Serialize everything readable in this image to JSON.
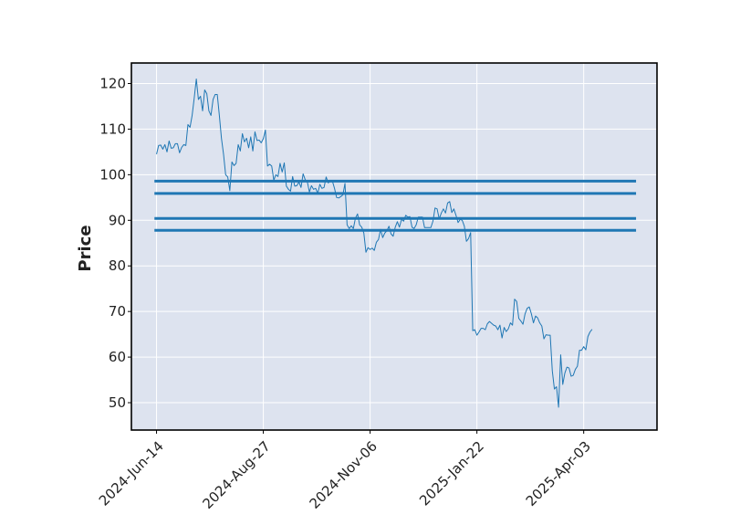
{
  "chart_data": {
    "type": "line",
    "title": "",
    "xlabel": "",
    "ylabel": "Price",
    "ylim": [
      44,
      124.5
    ],
    "x_ticks": [
      "2024-Jun-14",
      "2024-Aug-27",
      "2024-Nov-06",
      "2025-Jan-22",
      "2025-Apr-03"
    ],
    "x_tick_positions": [
      0,
      51,
      102,
      153,
      204
    ],
    "y_ticks": [
      50,
      60,
      70,
      80,
      90,
      100,
      110,
      120
    ],
    "grid": true,
    "background_color": "#dde3ef",
    "grid_color": "#ffffff",
    "line_color": "#1f77b4",
    "hline_color": "#1f77b4",
    "hlines": [
      {
        "y": 98.6,
        "x_start": -1,
        "x_end": 229
      },
      {
        "y": 95.9,
        "x_start": -1,
        "x_end": 229
      },
      {
        "y": 90.4,
        "x_start": -1,
        "x_end": 229
      },
      {
        "y": 87.8,
        "x_start": -1,
        "x_end": 229
      }
    ],
    "series": [
      {
        "values": [
          104.5,
          106.4,
          106.5,
          105.6,
          106.6,
          105.0,
          107.4,
          105.8,
          105.9,
          106.8,
          106.8,
          104.8,
          106.0,
          106.6,
          106.4,
          111.0,
          110.4,
          113.0,
          116.8,
          121.0,
          116.5,
          117.2,
          114.0,
          118.6,
          117.8,
          114.0,
          113.0,
          116.5,
          117.6,
          117.6,
          113.0,
          108.0,
          104.5,
          100.0,
          99.5,
          96.5,
          102.8,
          102.0,
          102.5,
          106.6,
          105.2,
          109.0,
          107.2,
          108.0,
          105.9,
          108.3,
          105.2,
          109.4,
          107.5,
          107.6,
          107.0,
          107.9,
          109.8,
          101.9,
          102.3,
          101.9,
          98.8,
          100.0,
          99.6,
          102.5,
          100.6,
          102.6,
          97.5,
          96.8,
          96.4,
          99.6,
          97.5,
          97.6,
          98.4,
          97.2,
          100.2,
          98.9,
          98.5,
          96.2,
          97.6,
          96.8,
          97.0,
          95.9,
          97.9,
          97.0,
          97.2,
          99.5,
          98.2,
          98.6,
          98.6,
          97.0,
          95.0,
          94.9,
          95.2,
          95.6,
          98.1,
          89.0,
          88.2,
          88.8,
          88.2,
          90.5,
          91.4,
          89.0,
          88.5,
          87.2,
          83.0,
          84.0,
          83.6,
          83.9,
          83.4,
          85.2,
          85.8,
          88.0,
          86.2,
          87.2,
          87.7,
          88.7,
          87.0,
          86.5,
          88.5,
          89.7,
          88.5,
          90.2,
          89.8,
          91.1,
          90.7,
          90.8,
          88.5,
          88.2,
          89.0,
          90.7,
          90.7,
          90.7,
          88.4,
          88.4,
          88.4,
          88.4,
          89.8,
          92.7,
          92.5,
          90.3,
          91.6,
          92.5,
          91.6,
          93.8,
          94.1,
          91.7,
          92.5,
          91.1,
          89.5,
          90.2,
          90.0,
          88.7,
          85.4,
          86.0,
          87.3,
          65.8,
          66.0,
          64.8,
          65.5,
          66.3,
          66.3,
          66.0,
          67.3,
          67.8,
          67.4,
          67.0,
          66.8,
          66.0,
          67.0,
          64.2,
          66.5,
          65.6,
          66.2,
          67.5,
          67.0,
          72.7,
          72.2,
          68.5,
          67.9,
          67.2,
          69.5,
          70.7,
          71.0,
          69.5,
          67.5,
          69.0,
          68.6,
          67.5,
          66.8,
          64.0,
          64.9,
          64.8,
          64.8,
          57.0,
          53.0,
          53.5,
          49.0,
          60.5,
          54.0,
          56.5,
          57.8,
          57.6,
          55.8,
          56.0,
          57.3,
          58.0,
          61.5,
          61.5,
          62.3,
          61.6,
          64.5,
          65.5,
          66.1
        ]
      }
    ]
  }
}
